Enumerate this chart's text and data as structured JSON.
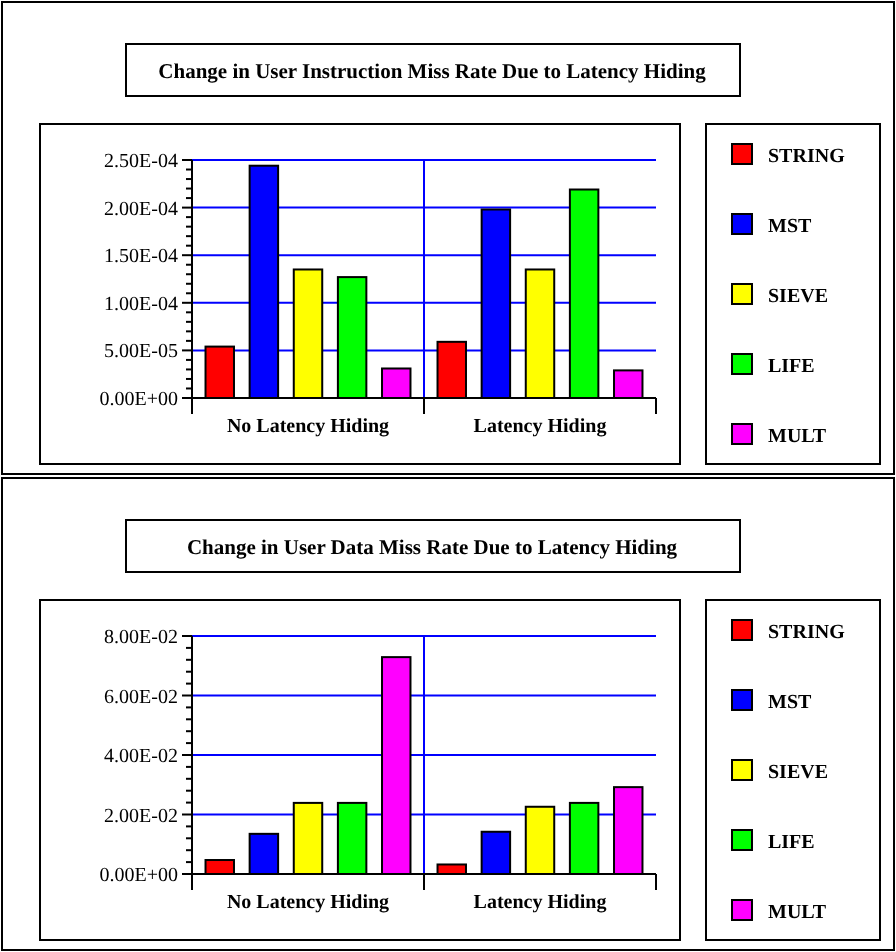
{
  "chart_data": [
    {
      "type": "bar",
      "title": "Change in  User Instruction Miss Rate Due to Latency Hiding",
      "categories": [
        "No Latency Hiding",
        "Latency Hiding"
      ],
      "series": [
        {
          "name": "STRING",
          "color": "#ff0000",
          "values": [
            5.4e-05,
            5.9e-05
          ]
        },
        {
          "name": "MST",
          "color": "#0000ff",
          "values": [
            0.000244,
            0.000198
          ]
        },
        {
          "name": "SIEVE",
          "color": "#ffff00",
          "values": [
            0.000135,
            0.000135
          ]
        },
        {
          "name": "LIFE",
          "color": "#00ff00",
          "values": [
            0.000127,
            0.000219
          ]
        },
        {
          "name": "MULT",
          "color": "#ff00ff",
          "values": [
            3.1e-05,
            2.9e-05
          ]
        }
      ],
      "ylim": [
        0,
        0.00025
      ],
      "yticks": [
        {
          "value": 0,
          "label": "0.00E+00"
        },
        {
          "value": 1e-05,
          "label": null
        },
        {
          "value": 2e-05,
          "label": null
        },
        {
          "value": 3e-05,
          "label": null
        },
        {
          "value": 4e-05,
          "label": null
        },
        {
          "value": 5e-05,
          "label": "5.00E-05"
        },
        {
          "value": 6e-05,
          "label": null
        },
        {
          "value": 7e-05,
          "label": null
        },
        {
          "value": 8e-05,
          "label": null
        },
        {
          "value": 9e-05,
          "label": null
        },
        {
          "value": 0.0001,
          "label": "1.00E-04"
        },
        {
          "value": 0.00011,
          "label": null
        },
        {
          "value": 0.00012,
          "label": null
        },
        {
          "value": 0.00013,
          "label": null
        },
        {
          "value": 0.00014,
          "label": null
        },
        {
          "value": 0.00015,
          "label": "1.50E-04"
        },
        {
          "value": 0.00016,
          "label": null
        },
        {
          "value": 0.00017,
          "label": null
        },
        {
          "value": 0.00018,
          "label": null
        },
        {
          "value": 0.00019,
          "label": null
        },
        {
          "value": 0.0002,
          "label": "2.00E-04"
        },
        {
          "value": 0.00021,
          "label": null
        },
        {
          "value": 0.00022,
          "label": null
        },
        {
          "value": 0.00023,
          "label": null
        },
        {
          "value": 0.00024,
          "label": null
        },
        {
          "value": 0.00025,
          "label": "2.50E-04"
        }
      ],
      "grid": true,
      "legend": "right"
    },
    {
      "type": "bar",
      "title": "Change in User Data Miss Rate Due to Latency Hiding",
      "categories": [
        "No Latency Hiding",
        "Latency Hiding"
      ],
      "series": [
        {
          "name": "STRING",
          "color": "#ff0000",
          "values": [
            0.0047,
            0.0032
          ]
        },
        {
          "name": "MST",
          "color": "#0000ff",
          "values": [
            0.0135,
            0.0142
          ]
        },
        {
          "name": "SIEVE",
          "color": "#ffff00",
          "values": [
            0.0239,
            0.0226
          ]
        },
        {
          "name": "LIFE",
          "color": "#00ff00",
          "values": [
            0.0239,
            0.0239
          ]
        },
        {
          "name": "MULT",
          "color": "#ff00ff",
          "values": [
            0.0729,
            0.0292
          ]
        }
      ],
      "ylim": [
        0,
        0.08
      ],
      "yticks": [
        {
          "value": 0,
          "label": "0.00E+00"
        },
        {
          "value": 0.004,
          "label": null
        },
        {
          "value": 0.008,
          "label": null
        },
        {
          "value": 0.012,
          "label": null
        },
        {
          "value": 0.016,
          "label": null
        },
        {
          "value": 0.02,
          "label": "2.00E-02"
        },
        {
          "value": 0.024,
          "label": null
        },
        {
          "value": 0.028,
          "label": null
        },
        {
          "value": 0.032,
          "label": null
        },
        {
          "value": 0.036,
          "label": null
        },
        {
          "value": 0.04,
          "label": "4.00E-02"
        },
        {
          "value": 0.044,
          "label": null
        },
        {
          "value": 0.048,
          "label": null
        },
        {
          "value": 0.052,
          "label": null
        },
        {
          "value": 0.056,
          "label": null
        },
        {
          "value": 0.06,
          "label": "6.00E-02"
        },
        {
          "value": 0.064,
          "label": null
        },
        {
          "value": 0.068,
          "label": null
        },
        {
          "value": 0.072,
          "label": null
        },
        {
          "value": 0.076,
          "label": null
        },
        {
          "value": 0.08,
          "label": "8.00E-02"
        }
      ],
      "grid": true,
      "legend": "right"
    }
  ]
}
